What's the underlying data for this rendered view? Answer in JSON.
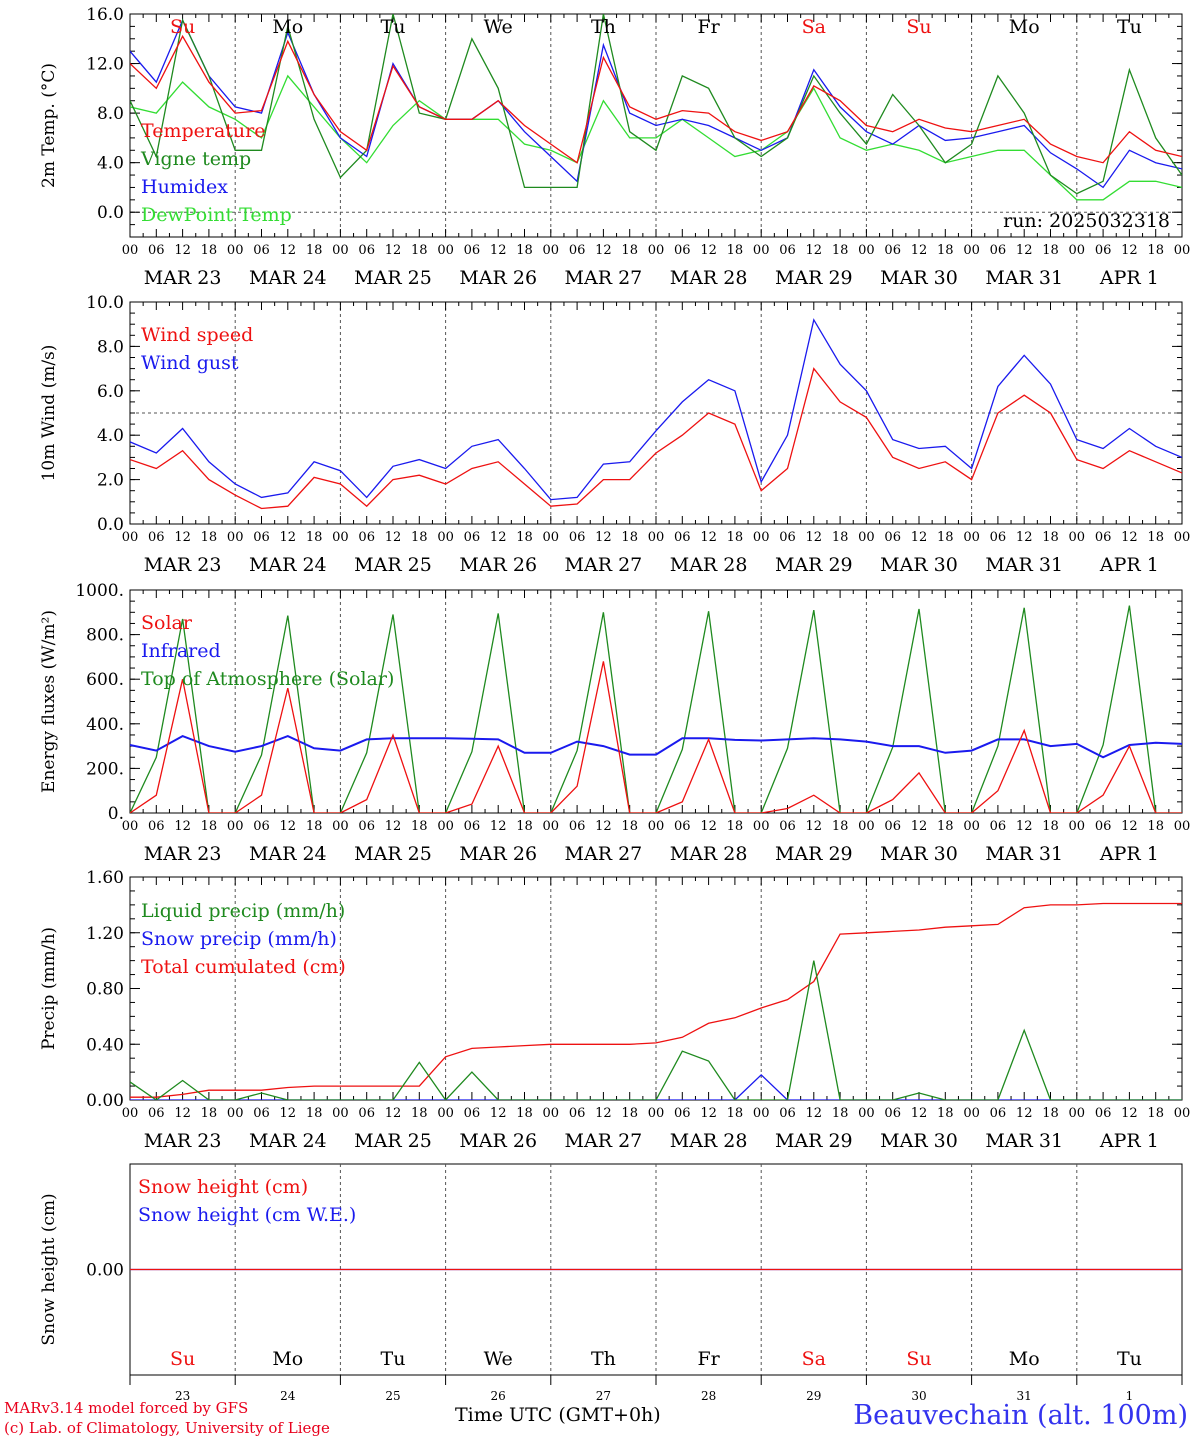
{
  "run_label": "run: 2025032318",
  "days": [
    {
      "weekday": "Su",
      "date": "MAR 23",
      "num": "23",
      "weekend": true
    },
    {
      "weekday": "Mo",
      "date": "MAR 24",
      "num": "24",
      "weekend": false
    },
    {
      "weekday": "Tu",
      "date": "MAR 25",
      "num": "25",
      "weekend": false
    },
    {
      "weekday": "We",
      "date": "MAR 26",
      "num": "26",
      "weekend": false
    },
    {
      "weekday": "Th",
      "date": "MAR 27",
      "num": "27",
      "weekend": false
    },
    {
      "weekday": "Fr",
      "date": "MAR 28",
      "num": "28",
      "weekend": false
    },
    {
      "weekday": "Sa",
      "date": "MAR 29",
      "num": "29",
      "weekend": true
    },
    {
      "weekday": "Su",
      "date": "MAR 30",
      "num": "30",
      "weekend": true
    },
    {
      "weekday": "Mo",
      "date": "MAR 31",
      "num": "31",
      "weekend": false
    },
    {
      "weekday": "Tu",
      "date": "APR  1",
      "num": "1",
      "weekend": false
    }
  ],
  "hour_ticks": [
    "00",
    "06",
    "12",
    "18"
  ],
  "footer": {
    "model": "MARv3.14 model forced by GFS",
    "credit": "(c) Lab. of Climatology, University of Liege",
    "xlabel": "Time UTC (GMT+0h)",
    "station": "Beauvechain (alt. 100m)"
  },
  "colors": {
    "red": "#ee1111",
    "green": "#1f8a1f",
    "blue": "#1a1aee",
    "lightgreen": "#33dd33"
  },
  "chart_data": [
    {
      "type": "line",
      "ylabel": "2m Temp. (°C)",
      "ylim": [
        -2,
        16
      ],
      "yticks": [
        "16.0",
        "12.0",
        "8.0",
        "4.0",
        "0.0"
      ],
      "ytick_values": [
        16,
        12,
        8,
        4,
        0
      ],
      "refline": 0,
      "x_hours": [
        0,
        6,
        12,
        18,
        24,
        30,
        36,
        42,
        48,
        54,
        60,
        66,
        72,
        78,
        84,
        90,
        96,
        102,
        108,
        114,
        120,
        126,
        132,
        138,
        144,
        150,
        156,
        162,
        168,
        174,
        180,
        186,
        192,
        198,
        204,
        210,
        216,
        222,
        228,
        234,
        240
      ],
      "series": [
        {
          "name": "Temperature",
          "color": "red",
          "values": [
            12.0,
            10.0,
            14.2,
            10.5,
            8.0,
            8.2,
            13.8,
            9.5,
            6.5,
            5.0,
            11.8,
            8.5,
            7.5,
            7.5,
            9.0,
            7.0,
            5.5,
            4.0,
            12.5,
            8.5,
            7.5,
            8.2,
            8.0,
            6.5,
            5.8,
            6.5,
            10.2,
            9.0,
            7.0,
            6.5,
            7.5,
            6.8,
            6.5,
            7.0,
            7.5,
            5.5,
            4.5,
            4.0,
            6.5,
            5.0,
            4.5
          ]
        },
        {
          "name": "Vigne temp",
          "color": "green",
          "values": [
            9.0,
            4.5,
            15.5,
            11.0,
            5.0,
            5.0,
            15.0,
            7.5,
            2.8,
            5.0,
            16.0,
            8.0,
            7.5,
            14.0,
            10.0,
            2.0,
            2.0,
            2.0,
            16.0,
            6.5,
            5.0,
            11.0,
            10.0,
            6.0,
            4.5,
            6.0,
            11.0,
            8.0,
            5.5,
            9.5,
            7.0,
            4.0,
            5.5,
            11.0,
            8.0,
            3.0,
            1.5,
            2.5,
            11.5,
            6.0,
            3.0
          ]
        },
        {
          "name": "Humidex",
          "color": "blue",
          "values": [
            13.0,
            10.5,
            15.5,
            11.0,
            8.5,
            8.0,
            14.5,
            9.5,
            6.0,
            4.5,
            12.0,
            8.5,
            7.5,
            7.5,
            9.0,
            6.5,
            4.5,
            2.5,
            13.5,
            8.0,
            7.0,
            7.5,
            7.0,
            6.0,
            5.0,
            6.0,
            11.5,
            8.5,
            6.5,
            5.5,
            7.0,
            5.8,
            6.0,
            6.5,
            7.0,
            4.8,
            3.5,
            2.0,
            5.0,
            4.0,
            3.5
          ]
        },
        {
          "name": "DewPoint Temp",
          "color": "lightgreen",
          "values": [
            8.5,
            8.0,
            10.5,
            8.5,
            7.5,
            6.0,
            11.0,
            8.5,
            6.0,
            4.0,
            7.0,
            9.0,
            7.5,
            7.5,
            7.5,
            5.5,
            5.0,
            4.0,
            9.0,
            6.0,
            6.0,
            7.5,
            6.0,
            4.5,
            5.0,
            6.5,
            10.0,
            6.0,
            5.0,
            5.5,
            5.0,
            4.0,
            4.5,
            5.0,
            5.0,
            3.0,
            1.0,
            1.0,
            2.5,
            2.5,
            2.0
          ]
        }
      ]
    },
    {
      "type": "line",
      "ylabel": "10m Wind (m/s)",
      "ylim": [
        0,
        10
      ],
      "yticks": [
        "10.0",
        "8.0",
        "6.0",
        "4.0",
        "2.0",
        "0.0"
      ],
      "ytick_values": [
        10,
        8,
        6,
        4,
        2,
        0
      ],
      "refline": 5,
      "x_hours": [
        0,
        6,
        12,
        18,
        24,
        30,
        36,
        42,
        48,
        54,
        60,
        66,
        72,
        78,
        84,
        90,
        96,
        102,
        108,
        114,
        120,
        126,
        132,
        138,
        144,
        150,
        156,
        162,
        168,
        174,
        180,
        186,
        192,
        198,
        204,
        210,
        216,
        222,
        228,
        234,
        240
      ],
      "series": [
        {
          "name": "Wind speed",
          "color": "red",
          "values": [
            2.9,
            2.5,
            3.3,
            2.0,
            1.3,
            0.7,
            0.8,
            2.1,
            1.8,
            0.8,
            2.0,
            2.2,
            1.8,
            2.5,
            2.8,
            1.8,
            0.8,
            0.9,
            2.0,
            2.0,
            3.2,
            4.0,
            5.0,
            4.5,
            1.5,
            2.5,
            7.0,
            5.5,
            4.8,
            3.0,
            2.5,
            2.8,
            2.0,
            5.0,
            5.8,
            5.0,
            2.9,
            2.5,
            3.3,
            2.8,
            2.3
          ]
        },
        {
          "name": "Wind gust",
          "color": "blue",
          "values": [
            3.7,
            3.2,
            4.3,
            2.8,
            1.8,
            1.2,
            1.4,
            2.8,
            2.4,
            1.2,
            2.6,
            2.9,
            2.5,
            3.5,
            3.8,
            2.5,
            1.1,
            1.2,
            2.7,
            2.8,
            4.2,
            5.5,
            6.5,
            6.0,
            1.9,
            4.0,
            9.2,
            7.2,
            6.0,
            3.8,
            3.4,
            3.5,
            2.5,
            6.2,
            7.6,
            6.3,
            3.8,
            3.4,
            4.3,
            3.5,
            3.0
          ]
        }
      ]
    },
    {
      "type": "line",
      "ylabel": "Energy fluxes (W/m²)",
      "ylim": [
        0,
        1000
      ],
      "yticks": [
        "1000.",
        "800.",
        "600.",
        "400.",
        "200.",
        "0."
      ],
      "ytick_values": [
        1000,
        800,
        600,
        400,
        200,
        0
      ],
      "refline": null,
      "x_hours": [
        0,
        6,
        12,
        18,
        24,
        30,
        36,
        42,
        48,
        54,
        60,
        66,
        72,
        78,
        84,
        90,
        96,
        102,
        108,
        114,
        120,
        126,
        132,
        138,
        144,
        150,
        156,
        162,
        168,
        174,
        180,
        186,
        192,
        198,
        204,
        210,
        216,
        222,
        228,
        234,
        240
      ],
      "series": [
        {
          "name": "Solar",
          "color": "red",
          "values": [
            0,
            80,
            600,
            0,
            0,
            80,
            560,
            0,
            0,
            60,
            350,
            0,
            0,
            40,
            300,
            0,
            0,
            120,
            680,
            0,
            0,
            50,
            330,
            0,
            0,
            20,
            80,
            0,
            0,
            60,
            180,
            0,
            0,
            100,
            370,
            0,
            0,
            80,
            300,
            0,
            0
          ]
        },
        {
          "name": "Infrared",
          "color": "blue",
          "values": [
            305,
            280,
            345,
            300,
            275,
            300,
            345,
            290,
            280,
            330,
            335,
            335,
            335,
            333,
            330,
            270,
            270,
            320,
            300,
            262,
            262,
            335,
            335,
            328,
            325,
            330,
            335,
            330,
            320,
            300,
            300,
            270,
            280,
            330,
            330,
            300,
            310,
            250,
            305,
            315,
            310
          ]
        },
        {
          "name": "Top of Atmosphere (Solar)",
          "color": "green",
          "values": [
            0,
            250,
            870,
            0,
            0,
            260,
            885,
            0,
            0,
            270,
            890,
            0,
            0,
            275,
            895,
            0,
            0,
            280,
            900,
            0,
            0,
            285,
            905,
            0,
            0,
            290,
            910,
            0,
            0,
            295,
            915,
            0,
            0,
            300,
            920,
            0,
            0,
            305,
            930,
            0,
            0
          ]
        }
      ]
    },
    {
      "type": "line",
      "ylabel": "Precip (mm/h)",
      "ylim": [
        0,
        1.6
      ],
      "yticks": [
        "1.60",
        "1.20",
        "0.80",
        "0.40",
        "0.00"
      ],
      "ytick_values": [
        1.6,
        1.2,
        0.8,
        0.4,
        0
      ],
      "refline": null,
      "x_hours": [
        0,
        6,
        12,
        18,
        24,
        30,
        36,
        42,
        48,
        54,
        60,
        66,
        72,
        78,
        84,
        90,
        96,
        102,
        108,
        114,
        120,
        126,
        132,
        138,
        144,
        150,
        156,
        162,
        168,
        174,
        180,
        186,
        192,
        198,
        204,
        210,
        216,
        222,
        228,
        234,
        240
      ],
      "series": [
        {
          "name": "Liquid precip (mm/h)",
          "color": "green",
          "values": [
            0.13,
            0.0,
            0.14,
            0.0,
            0.0,
            0.05,
            0.0,
            0.0,
            0.0,
            0.0,
            0.0,
            0.27,
            0.0,
            0.2,
            0.0,
            0.0,
            0.0,
            0.0,
            0.0,
            0.0,
            0.0,
            0.35,
            0.28,
            0.0,
            0.0,
            0.0,
            1.0,
            0.0,
            0.0,
            0.0,
            0.05,
            0.0,
            0.0,
            0.0,
            0.5,
            0.0,
            0.0,
            0.0,
            0.0,
            0.0,
            0.0
          ]
        },
        {
          "name": "Snow precip (mm/h)",
          "color": "blue",
          "values": [
            0,
            0,
            0,
            0,
            0,
            0,
            0,
            0,
            0,
            0,
            0,
            0,
            0,
            0,
            0,
            0,
            0,
            0,
            0,
            0,
            0,
            0,
            0,
            0,
            0.18,
            0,
            0,
            0,
            0,
            0,
            0,
            0,
            0,
            0,
            0,
            0,
            0,
            0,
            0,
            0,
            0
          ]
        },
        {
          "name": "Total cumulated (cm)",
          "color": "red",
          "values": [
            0.02,
            0.02,
            0.04,
            0.07,
            0.07,
            0.07,
            0.09,
            0.1,
            0.1,
            0.1,
            0.1,
            0.1,
            0.31,
            0.37,
            0.38,
            0.39,
            0.4,
            0.4,
            0.4,
            0.4,
            0.41,
            0.45,
            0.55,
            0.59,
            0.66,
            0.72,
            0.85,
            1.19,
            1.2,
            1.21,
            1.22,
            1.24,
            1.25,
            1.26,
            1.38,
            1.4,
            1.4,
            1.41,
            1.41,
            1.41,
            1.41
          ]
        }
      ]
    },
    {
      "type": "line",
      "ylabel": "Snow height (cm)",
      "ylim": [
        -1,
        1
      ],
      "yticks": [
        "0.00"
      ],
      "ytick_values": [
        0
      ],
      "refline": null,
      "x_hours": [
        0,
        240
      ],
      "series": [
        {
          "name": "Snow height (cm)",
          "color": "red",
          "values": [
            0,
            0
          ]
        },
        {
          "name": "Snow height (cm W.E.)",
          "color": "blue",
          "values": [
            0,
            0
          ]
        }
      ]
    }
  ]
}
